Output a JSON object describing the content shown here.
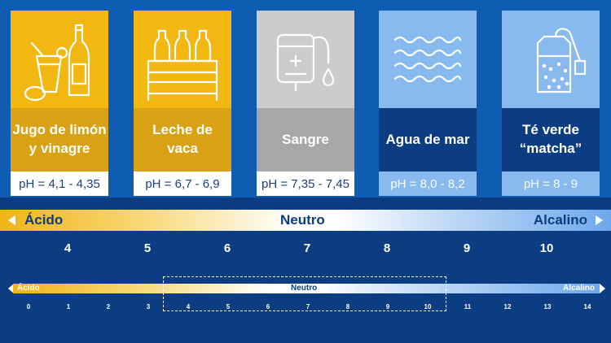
{
  "colors": {
    "background": "#0c3d82",
    "top_panel": "#0f5cb3",
    "acid_yellow": "#f3b712",
    "neutral_gray": "#cccccc",
    "alkaline_blue": "#88b9ef",
    "text_dark_blue": "#0c3d82"
  },
  "cards": [
    {
      "name": "Jugo de limón\ny vinagre",
      "ph": "pH = 4,1 - 4,35",
      "icon": "lemon-juice-vinegar-icon"
    },
    {
      "name": "Leche de\nvaca",
      "ph": "pH = 6,7 - 6,9",
      "icon": "milk-bottles-crate-icon"
    },
    {
      "name": "Sangre",
      "ph": "pH = 7,35 - 7,45",
      "icon": "blood-bag-icon"
    },
    {
      "name": "Agua de mar",
      "ph": "pH = 8,0 - 8,2",
      "icon": "sea-waves-icon"
    },
    {
      "name": "Té verde\n“matcha”",
      "ph": "pH = 8 - 9",
      "icon": "tea-bag-icon"
    }
  ],
  "scale_main": {
    "left_label": "Ácido",
    "center_label": "Neutro",
    "right_label": "Alcalino",
    "ticks": [
      "4",
      "5",
      "6",
      "7",
      "8",
      "9",
      "10"
    ]
  },
  "scale_full": {
    "left_label": "Ácido",
    "center_label": "Neutro",
    "right_label": "Alcalino",
    "ticks": [
      "0",
      "1",
      "2",
      "3",
      "4",
      "5",
      "6",
      "7",
      "8",
      "9",
      "10",
      "11",
      "12",
      "13",
      "14"
    ],
    "highlight_range": [
      3.4,
      10.5
    ]
  }
}
